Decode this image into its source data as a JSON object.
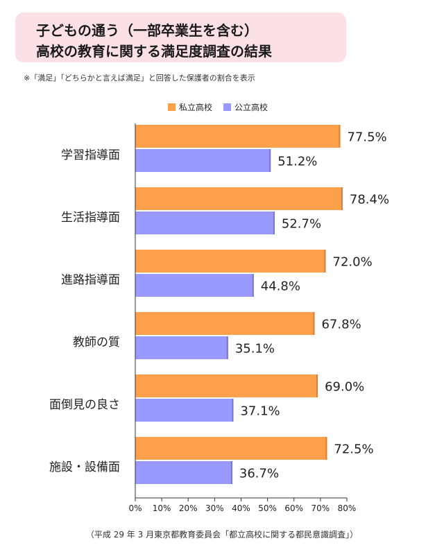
{
  "header": {
    "title_line1": "子どもの通う（一部卒業生を含む）",
    "title_line2": "高校の教育に関する満足度調査の結果",
    "note": "※「満足」「どちらかと言えば満足」と回答した保護者の割合を表示"
  },
  "source": "（平成 29 年 3 月東京都教育委員会「都立高校に関する都民意識調査」）",
  "chart_data": {
    "type": "bar",
    "orientation": "horizontal",
    "categories": [
      "学習指導面",
      "生活指導面",
      "進路指導面",
      "教師の質",
      "面倒見の良さ",
      "施設・設備面"
    ],
    "series": [
      {
        "name": "私立高校",
        "color": "#fca04c",
        "values": [
          77.5,
          78.4,
          72.0,
          67.8,
          69.0,
          72.5
        ]
      },
      {
        "name": "公立高校",
        "color": "#9999ff",
        "values": [
          51.2,
          52.7,
          44.8,
          35.1,
          37.1,
          36.7
        ]
      }
    ],
    "value_labels": [
      [
        "77.5%",
        "78.4%",
        "72.0%",
        "67.8%",
        "69.0%",
        "72.5%"
      ],
      [
        "51.2%",
        "52.7%",
        "44.8%",
        "35.1%",
        "37.1%",
        "36.7%"
      ]
    ],
    "xticks": [
      "0%",
      "10%",
      "20%",
      "30%",
      "40%",
      "50%",
      "60%",
      "70%",
      "80%"
    ],
    "xlim": [
      0,
      80
    ],
    "legend_position": "top",
    "grid": false
  }
}
